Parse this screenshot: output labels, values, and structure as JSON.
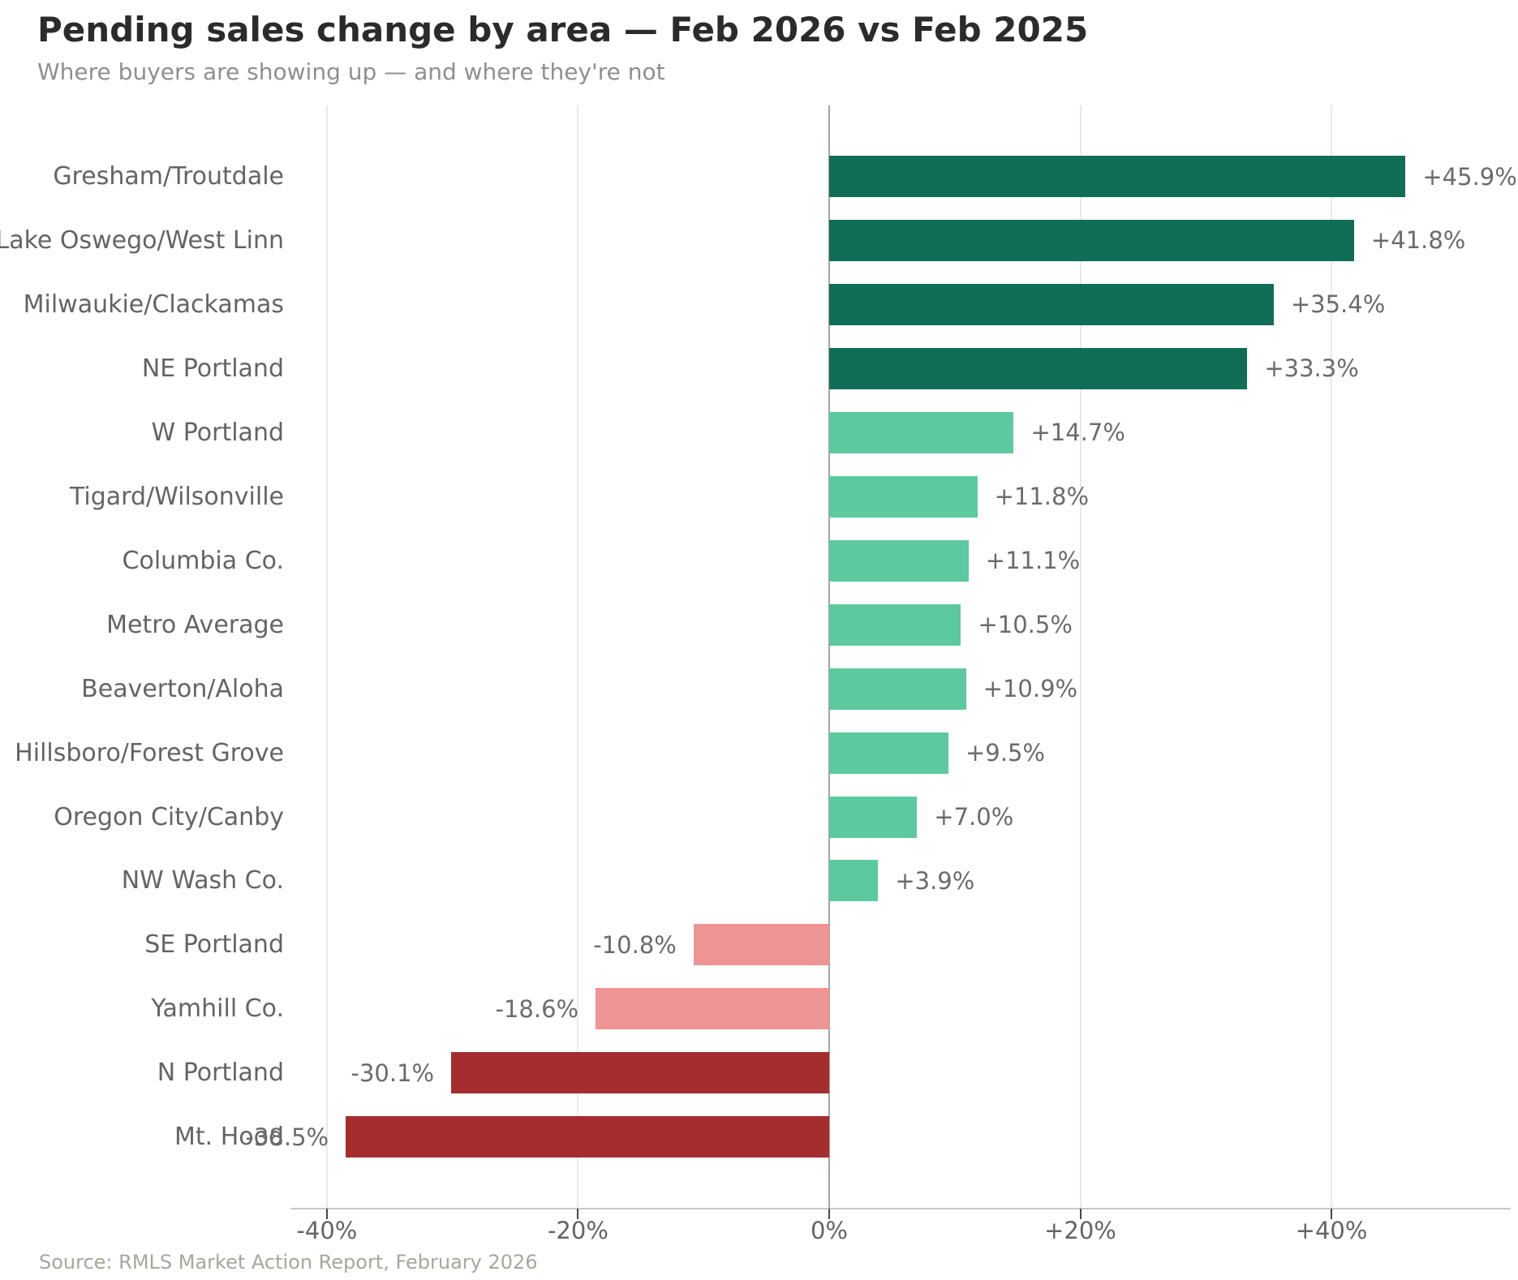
{
  "header": {
    "title": "Pending sales change by area — Feb 2026 vs Feb 2025",
    "subtitle": "Where buyers are showing up — and where they're not"
  },
  "source_note": "Source: RMLS Market Action Report, February 2026",
  "colors": {
    "strong_gain": "#0f6e55",
    "gain": "#5cc9a1",
    "loss": "#ee9494",
    "strong_loss": "#a62d2d",
    "grid": "#e9e9e6",
    "zero_line": "#a8a49d",
    "axis_line": "#c9c7c0",
    "text_gray": "#646464"
  },
  "chart_data": {
    "type": "bar",
    "orientation": "horizontal",
    "title": "Pending sales change by area — Feb 2026 vs Feb 2025",
    "subtitle": "Where buyers are showing up — and where they're not",
    "xlabel": "",
    "ylabel": "",
    "xlim": [
      -42.9,
      53.5
    ],
    "grid": "vertical",
    "zero_line": true,
    "legend": "none",
    "x_ticks": [
      {
        "value": -40,
        "label": "-40%"
      },
      {
        "value": -20,
        "label": "-20%"
      },
      {
        "value": 0,
        "label": "0%"
      },
      {
        "value": 20,
        "label": "+20%"
      },
      {
        "value": 40,
        "label": "+40%"
      }
    ],
    "categories": [
      "Gresham/Troutdale",
      "Lake Oswego/West Linn",
      "Milwaukie/Clackamas",
      "NE Portland",
      "W Portland",
      "Tigard/Wilsonville",
      "Columbia Co.",
      "Metro Average",
      "Beaverton/Aloha",
      "Hillsboro/Forest Grove",
      "Oregon City/Canby",
      "NW Wash Co.",
      "SE Portland",
      "Yamhill Co.",
      "N Portland",
      "Mt. Hood"
    ],
    "values": [
      45.9,
      41.8,
      35.4,
      33.3,
      14.7,
      11.8,
      11.1,
      10.5,
      10.9,
      9.5,
      7.0,
      3.9,
      -10.8,
      -18.6,
      -30.1,
      -38.5
    ],
    "value_labels": [
      "+45.9%",
      "+41.8%",
      "+35.4%",
      "+33.3%",
      "+14.7%",
      "+11.8%",
      "+11.1%",
      "+10.5%",
      "+10.9%",
      "+9.5%",
      "+7.0%",
      "+3.9%",
      "-10.8%",
      "-18.6%",
      "-30.1%",
      "-38.5%"
    ],
    "bar_colors": [
      "#0f6e55",
      "#0f6e55",
      "#0f6e55",
      "#0f6e55",
      "#5cc9a1",
      "#5cc9a1",
      "#5cc9a1",
      "#5cc9a1",
      "#5cc9a1",
      "#5cc9a1",
      "#5cc9a1",
      "#5cc9a1",
      "#ee9494",
      "#ee9494",
      "#a62d2d",
      "#a62d2d"
    ]
  }
}
